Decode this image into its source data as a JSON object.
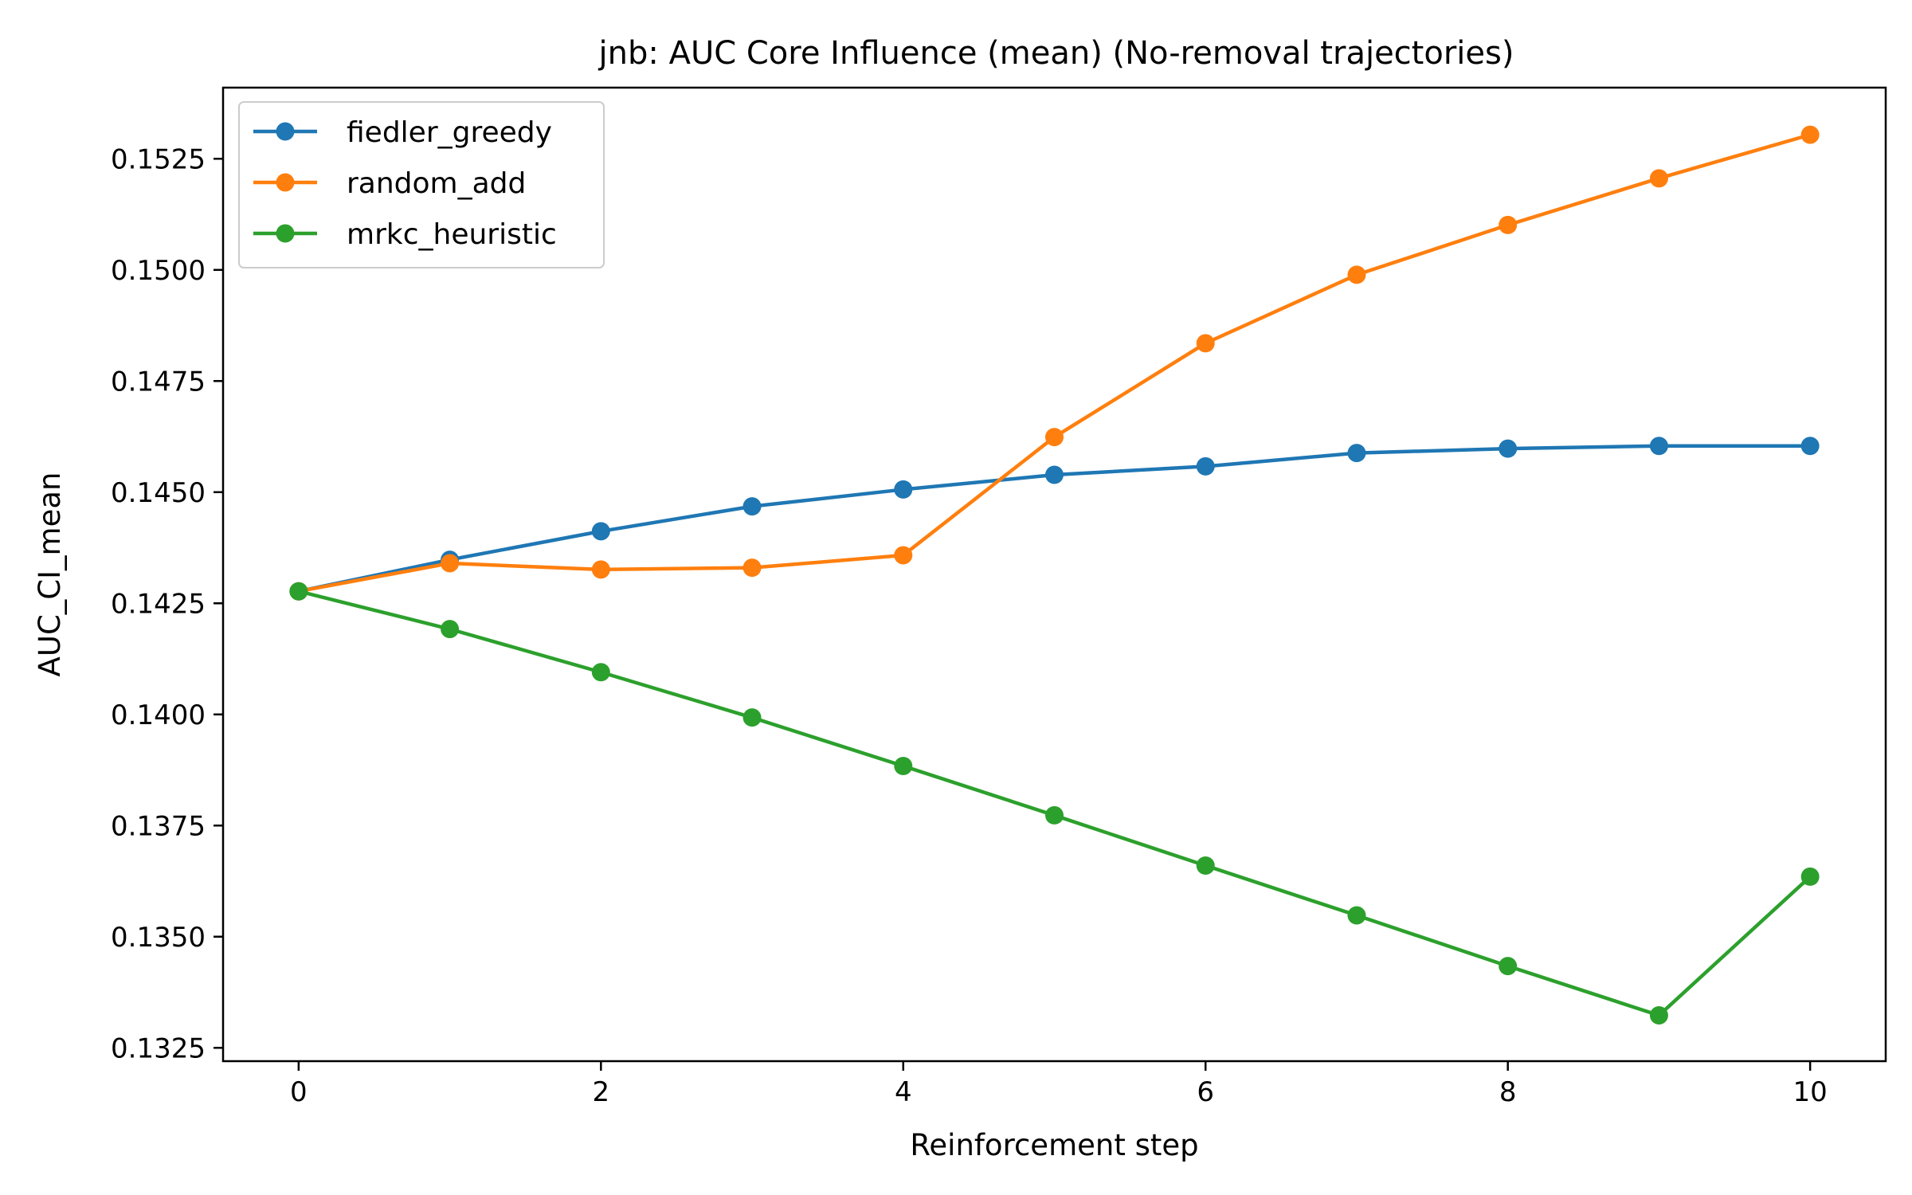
{
  "chart_data": {
    "type": "line",
    "title": "jnb: AUC Core Influence (mean) (No-removal trajectories)",
    "xlabel": "Reinforcement step",
    "ylabel": "AUC_CI_mean",
    "xlim": [
      -0.5,
      10.5
    ],
    "ylim": [
      0.1322,
      0.1541
    ],
    "x_ticks": [
      0,
      2,
      4,
      6,
      8,
      10
    ],
    "y_ticks": [
      0.1325,
      0.135,
      0.1375,
      0.14,
      0.1425,
      0.145,
      0.1475,
      0.15,
      0.1525
    ],
    "y_tick_labels": [
      "0.1325",
      "0.1350",
      "0.1375",
      "0.1400",
      "0.1425",
      "0.1450",
      "0.1475",
      "0.1500",
      "0.1525"
    ],
    "x": [
      0,
      1,
      2,
      3,
      4,
      5,
      6,
      7,
      8,
      9,
      10
    ],
    "grid": false,
    "legend_position": "top-left",
    "series": [
      {
        "name": "fiedler_greedy",
        "color": "#1f77b4",
        "values": [
          0.14277,
          0.14348,
          0.14412,
          0.14468,
          0.14506,
          0.14539,
          0.14558,
          0.14588,
          0.14598,
          0.14604,
          0.14604
        ]
      },
      {
        "name": "random_add",
        "color": "#ff7f0e",
        "values": [
          0.14277,
          0.1434,
          0.14326,
          0.1433,
          0.14358,
          0.14624,
          0.14835,
          0.14989,
          0.15101,
          0.15206,
          0.15304
        ]
      },
      {
        "name": "mrkc_heuristic",
        "color": "#2ca02c",
        "values": [
          0.14277,
          0.14192,
          0.14095,
          0.13993,
          0.13884,
          0.13773,
          0.1366,
          0.13548,
          0.13434,
          0.13323,
          0.13635
        ]
      }
    ]
  }
}
